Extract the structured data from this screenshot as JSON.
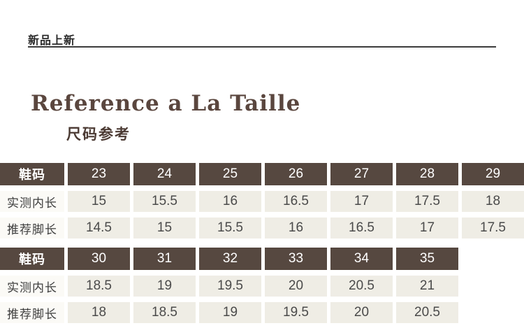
{
  "header": {
    "banner": "新品上新",
    "title": "Reference a La Taille",
    "subtitle": "尺码参考"
  },
  "table": {
    "row_labels": {
      "size": "鞋码",
      "inner_length": "实测内长",
      "foot_length": "推荐脚长"
    },
    "sections": [
      {
        "sizes": [
          "23",
          "24",
          "25",
          "26",
          "27",
          "28",
          "29"
        ],
        "inner_length": [
          "15",
          "15.5",
          "16",
          "16.5",
          "17",
          "17.5",
          "18"
        ],
        "foot_length": [
          "14.5",
          "15",
          "15.5",
          "16",
          "16.5",
          "17",
          "17.5"
        ]
      },
      {
        "sizes": [
          "30",
          "31",
          "32",
          "33",
          "34",
          "35"
        ],
        "inner_length": [
          "18.5",
          "19",
          "19.5",
          "20",
          "20.5",
          "21"
        ],
        "foot_length": [
          "18",
          "18.5",
          "19",
          "19.5",
          "20",
          "20.5"
        ]
      }
    ]
  },
  "colors": {
    "header_cell_bg": "#564840",
    "data_cell_bg": "#efede5",
    "label_cell_bg": "#fbfaf6",
    "title_color": "#5a463e",
    "banner_line_color": "#3c3c3c",
    "page_bg": "#ffffff"
  }
}
